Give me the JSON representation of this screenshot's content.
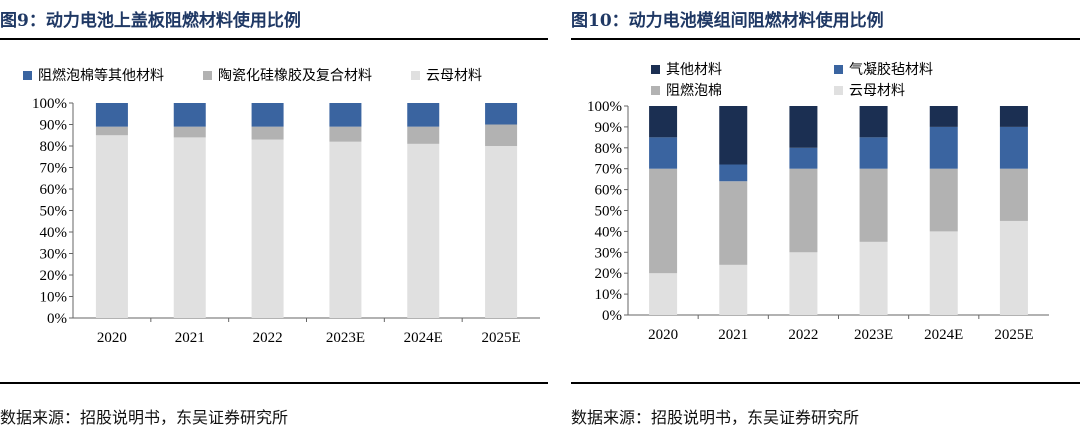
{
  "panels": [
    {
      "title": "图9：动力电池上盖板阻燃材料使用比例",
      "source": "数据来源：招股说明书，东吴证券研究所"
    },
    {
      "title": "图10：动力电池模组间阻燃材料使用比例",
      "source": "数据来源：招股说明书，东吴证券研究所"
    }
  ],
  "chart_data": [
    {
      "type": "bar",
      "stacked": true,
      "title": "图9：动力电池上盖板阻燃材料使用比例",
      "categories": [
        "2020",
        "2021",
        "2022",
        "2023E",
        "2024E",
        "2025E"
      ],
      "ylim": [
        0,
        100
      ],
      "yticks": [
        "0%",
        "10%",
        "20%",
        "30%",
        "40%",
        "50%",
        "60%",
        "70%",
        "80%",
        "90%",
        "100%"
      ],
      "legend_position": "top",
      "series": [
        {
          "name": "云母材料",
          "color": "#e0e0e0",
          "values": [
            85,
            84,
            83,
            82,
            81,
            80
          ]
        },
        {
          "name": "陶瓷化硅橡胶及复合材料",
          "color": "#b2b2b2",
          "values": [
            4,
            5,
            6,
            7,
            8,
            10
          ]
        },
        {
          "name": "阻燃泡棉等其他材料",
          "color": "#3a64a0",
          "values": [
            11,
            11,
            11,
            11,
            11,
            10
          ]
        }
      ]
    },
    {
      "type": "bar",
      "stacked": true,
      "title": "图10：动力电池模组间阻燃材料使用比例",
      "categories": [
        "2020",
        "2021",
        "2022",
        "2023E",
        "2024E",
        "2025E"
      ],
      "ylim": [
        0,
        100
      ],
      "yticks": [
        "0%",
        "10%",
        "20%",
        "30%",
        "40%",
        "50%",
        "60%",
        "70%",
        "80%",
        "90%",
        "100%"
      ],
      "legend_position": "top",
      "series": [
        {
          "name": "云母材料",
          "color": "#e0e0e0",
          "values": [
            20,
            24,
            30,
            35,
            40,
            45
          ]
        },
        {
          "name": "阻燃泡棉",
          "color": "#b2b2b2",
          "values": [
            50,
            40,
            40,
            35,
            30,
            25
          ]
        },
        {
          "name": "气凝胶毡材料",
          "color": "#3a64a0",
          "values": [
            15,
            8,
            10,
            15,
            20,
            20
          ]
        },
        {
          "name": "其他材料",
          "color": "#1b2f52",
          "values": [
            15,
            28,
            20,
            15,
            10,
            10
          ]
        }
      ]
    }
  ]
}
